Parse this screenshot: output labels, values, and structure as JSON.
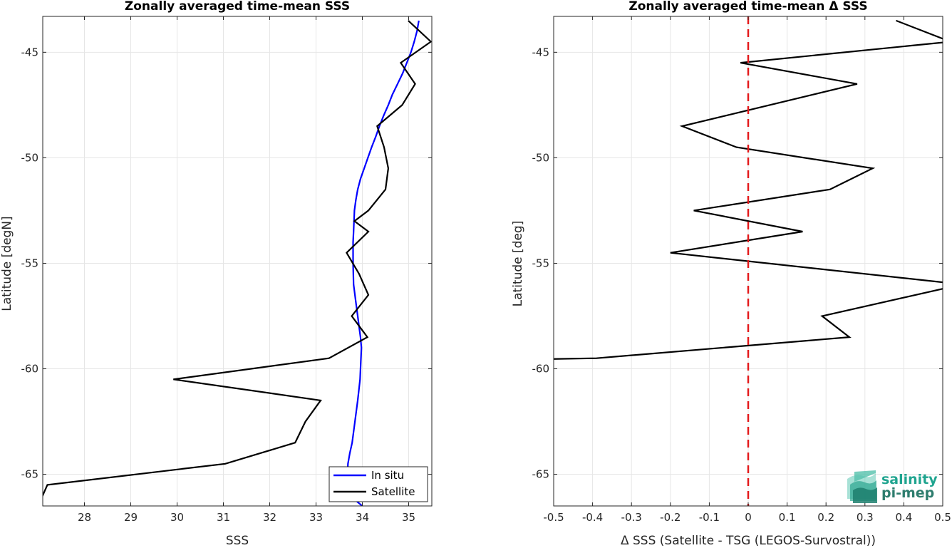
{
  "chart_data": [
    {
      "type": "line",
      "title": "Zonally averaged time-mean SSS",
      "xlabel": "SSS",
      "ylabel": "Latitude [degN]",
      "xlim": [
        27.1,
        35.5
      ],
      "ylim": [
        -66.5,
        -43.3
      ],
      "xticks": [
        28,
        29,
        30,
        31,
        32,
        33,
        34,
        35
      ],
      "yticks": [
        -45,
        -50,
        -55,
        -60,
        -65
      ],
      "grid": true,
      "legend": "bottom-right",
      "series": [
        {
          "name": "In situ",
          "color": "#0000ff",
          "x": [
            35.22,
            35.18,
            35.12,
            35.05,
            34.96,
            34.87,
            34.76,
            34.65,
            34.56,
            34.46,
            34.37,
            34.29,
            34.2,
            34.12,
            34.04,
            33.96,
            33.9,
            33.86,
            33.83,
            33.82,
            33.81,
            33.8,
            33.8,
            33.81,
            33.84,
            33.87,
            33.9,
            33.93,
            33.96,
            33.98,
            33.95,
            33.9,
            33.84,
            33.78,
            33.73,
            33.69,
            33.67,
            33.72,
            34.0
          ],
          "y": [
            -43.5,
            -44.0,
            -44.5,
            -45.0,
            -45.5,
            -46.0,
            -46.5,
            -47.0,
            -47.5,
            -48.0,
            -48.5,
            -49.0,
            -49.5,
            -50.0,
            -50.5,
            -51.0,
            -51.5,
            -52.0,
            -52.5,
            -53.0,
            -53.5,
            -54.0,
            -55.0,
            -56.0,
            -56.5,
            -57.0,
            -57.5,
            -58.0,
            -58.5,
            -59.0,
            -60.5,
            -61.5,
            -62.5,
            -63.5,
            -64.0,
            -64.5,
            -65.5,
            -66.0,
            -66.5
          ]
        },
        {
          "name": "Satellite",
          "color": "#000000",
          "x": [
            34.99,
            35.48,
            34.83,
            35.14,
            34.86,
            34.32,
            34.47,
            34.56,
            34.5,
            34.13,
            33.83,
            34.13,
            33.66,
            33.93,
            34.13,
            33.77,
            34.11,
            33.28,
            29.92,
            33.1,
            32.77,
            32.55,
            31.04,
            27.2,
            27.0
          ],
          "y": [
            -43.5,
            -44.5,
            -45.5,
            -46.5,
            -47.5,
            -48.5,
            -49.5,
            -50.5,
            -51.5,
            -52.5,
            -53.0,
            -53.5,
            -54.5,
            -55.5,
            -56.5,
            -57.5,
            -58.5,
            -59.5,
            -60.5,
            -61.5,
            -62.5,
            -63.5,
            -64.5,
            -65.5,
            -66.5
          ]
        }
      ]
    },
    {
      "type": "line",
      "title": "Zonally averaged time-mean Δ SSS",
      "xlabel": "Δ SSS (Satellite - TSG (LEGOS-Survostral))",
      "ylabel": "Latitude [deg]",
      "xlim": [
        -0.5,
        0.5
      ],
      "ylim": [
        -66.5,
        -43.3
      ],
      "xticks": [
        -0.5,
        -0.4,
        -0.3,
        -0.2,
        -0.1,
        0,
        0.1,
        0.2,
        0.3,
        0.4,
        0.5
      ],
      "xticklabels": [
        "-0.5",
        "-0.4",
        "-0.3",
        "-0.2",
        "-0.1",
        "0",
        "0.1",
        "0.2",
        "0.3",
        "0.4",
        "0.5"
      ],
      "yticks": [
        -45,
        -50,
        -55,
        -60,
        -65
      ],
      "grid": true,
      "reference_line": {
        "x": 0,
        "color": "#e41a1c",
        "style": "dashed"
      },
      "series": [
        {
          "color": "#000000",
          "x": [
            0.38,
            0.52,
            -0.02,
            0.28,
            -0.17,
            -0.03,
            0.32,
            0.21,
            -0.14,
            0.14,
            -0.2,
            0.55,
            0.19,
            0.26,
            -0.39,
            -0.55
          ],
          "y": [
            -43.5,
            -44.5,
            -45.5,
            -46.5,
            -48.5,
            -49.5,
            -50.5,
            -51.5,
            -52.5,
            -53.5,
            -54.5,
            -56.0,
            -57.5,
            -58.5,
            -59.5,
            -59.55
          ]
        }
      ]
    }
  ],
  "logo": {
    "line1": "salinity",
    "line2": "pi-mep",
    "color1": "#1fa48f",
    "color2": "#2e7d6e"
  }
}
